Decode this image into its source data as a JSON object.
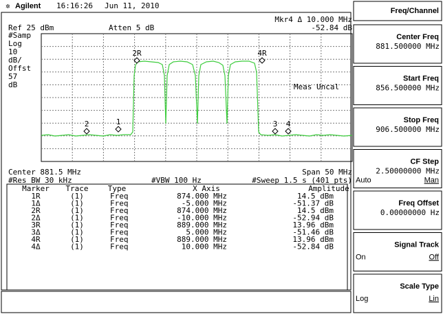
{
  "header": {
    "brand": "Agilent",
    "time": "16:16:26",
    "date": "Jun 11, 2010"
  },
  "display": {
    "marker_readout": "Mkr4 Δ 10.000 MHz",
    "marker_value": "-52.84 dB",
    "ref_level": "Ref 25 dBm",
    "attenuation": "Atten 5 dB",
    "left_labels": [
      "#Samp",
      "Log",
      "10",
      "dB/",
      "Offst",
      "57",
      "dB"
    ],
    "meas_uncal": "Meas Uncal",
    "trace_markers": [
      "2R",
      "4R",
      "2",
      "1",
      "3",
      "4"
    ],
    "center": "Center 881.5 MHz",
    "span": "Span 50 MHz",
    "res_bw": "#Res BW 30 kHz",
    "vbw": "#VBW 100 Hz",
    "sweep": "#Sweep 1.5 s (401 pts)"
  },
  "marker_table": {
    "columns": [
      "Marker",
      "Trace",
      "Type",
      "X Axis",
      "Amplitude"
    ],
    "rows": [
      [
        "1R",
        "(1)",
        "Freq",
        "874.000 MHz",
        "14.5 dBm"
      ],
      [
        "1Δ",
        "(1)",
        "Freq",
        "-5.000 MHz",
        "-51.37 dB"
      ],
      [
        "2R",
        "(1)",
        "Freq",
        "874.000 MHz",
        "14.5 dBm"
      ],
      [
        "2Δ",
        "(1)",
        "Freq",
        "-10.000 MHz",
        "-52.94 dB"
      ],
      [
        "3R",
        "(1)",
        "Freq",
        "889.000 MHz",
        "13.96 dBm"
      ],
      [
        "3Δ",
        "(1)",
        "Freq",
        "5.000 MHz",
        "-51.46 dB"
      ],
      [
        "4R",
        "(1)",
        "Freq",
        "889.000 MHz",
        "13.96 dBm"
      ],
      [
        "4Δ",
        "(1)",
        "Freq",
        "10.000 MHz",
        "-52.84 dB"
      ]
    ]
  },
  "softkeys": {
    "title": "Freq/Channel",
    "keys": [
      {
        "label": "Center Freq",
        "value": "881.500000 MHz"
      },
      {
        "label": "Start Freq",
        "value": "856.500000 MHz"
      },
      {
        "label": "Stop Freq",
        "value": "906.500000 MHz"
      },
      {
        "label": "CF Step",
        "value": "2.50000000 MHz",
        "options": [
          "Auto",
          "Man"
        ]
      },
      {
        "label": "Freq Offset",
        "value": "0.00000000 Hz"
      },
      {
        "label": "Signal Track",
        "options": [
          "On",
          "Off"
        ]
      },
      {
        "label": "Scale Type",
        "options": [
          "Log",
          "Lin"
        ]
      }
    ]
  }
}
